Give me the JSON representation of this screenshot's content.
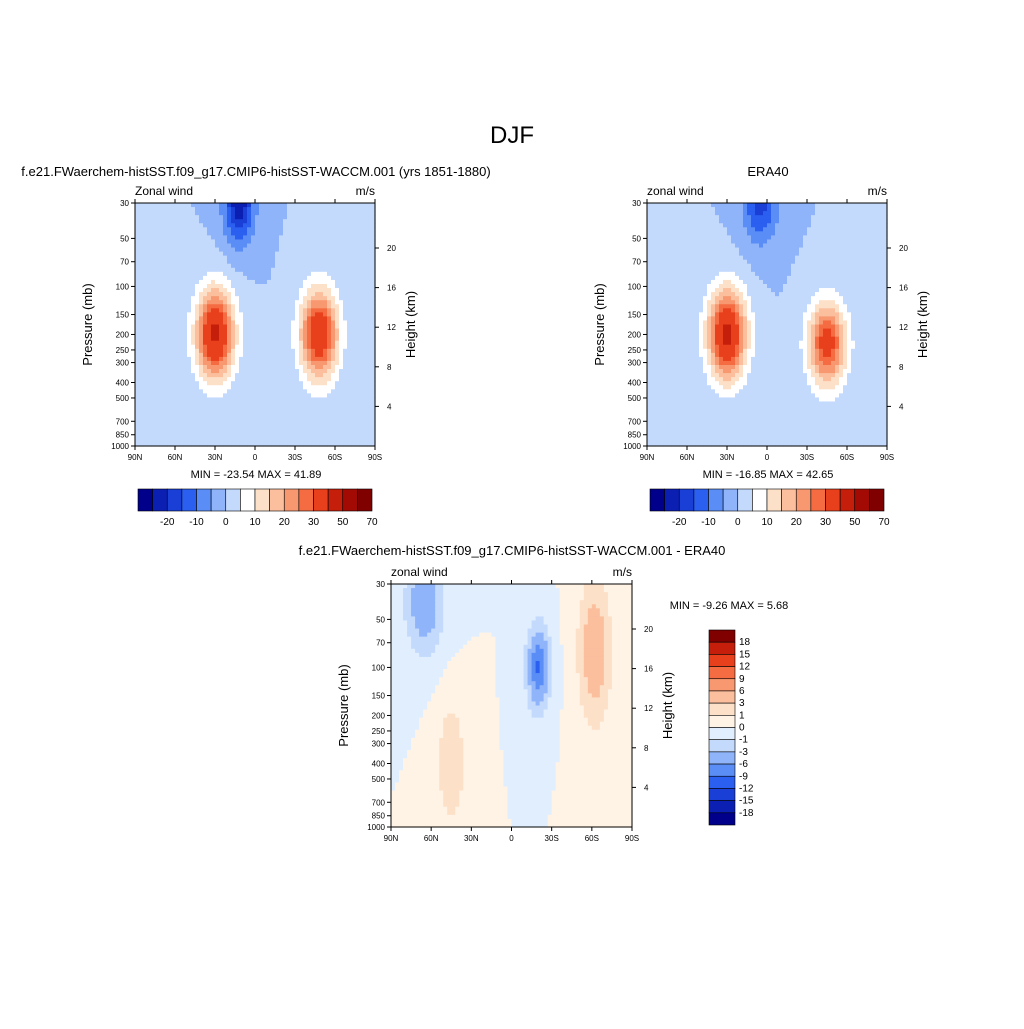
{
  "page_title": "DJF",
  "colors": {
    "main_scale": [
      "#00008b",
      "#0b1fb3",
      "#1a3fd6",
      "#2a5ff0",
      "#5a8ef6",
      "#8fb4fa",
      "#c4dafd",
      "#ffffff",
      "#fde0c8",
      "#fbbf9e",
      "#f89870",
      "#f56c42",
      "#e8401c",
      "#c51f0c",
      "#a30a04",
      "#800000"
    ],
    "diff_scale": [
      "#00008b",
      "#0b1fb3",
      "#1a3fd6",
      "#2a5ff0",
      "#5a8ef6",
      "#8fb4fa",
      "#c4dafd",
      "#e1eefe",
      "#fff3e6",
      "#fde0c8",
      "#fbbf9e",
      "#f89870",
      "#f56c42",
      "#e8401c",
      "#c51f0c",
      "#800000"
    ]
  },
  "panels": {
    "model": {
      "title": "f.e21.FWaerchem-histSST.f09_g17.CMIP6-histSST-WACCM.001 (yrs 1851-1880)",
      "left_label": "Zonal wind",
      "right_label": "m/s",
      "min_max": "MIN = -23.54  MAX =  41.89"
    },
    "obs": {
      "title": "ERA40",
      "left_label": "zonal wind",
      "right_label": "m/s",
      "min_max": "MIN = -16.85  MAX =  42.65"
    },
    "diff": {
      "title": "f.e21.FWaerchem-histSST.f09_g17.CMIP6-histSST-WACCM.001 - ERA40",
      "left_label": "zonal wind",
      "right_label": "m/s",
      "min_max": "MIN =  -9.26  MAX =   5.68"
    }
  },
  "chart_data": [
    {
      "type": "heatmap",
      "name": "model",
      "xlabel": "",
      "ylabel": "Pressure (mb)",
      "y2label": "Height (km)",
      "x_ticks": [
        "90N",
        "60N",
        "30N",
        "0",
        "30S",
        "60S",
        "90S"
      ],
      "x_tick_values": [
        90,
        60,
        30,
        0,
        -30,
        -60,
        -90
      ],
      "xlim": [
        90,
        -90
      ],
      "y_ticks": [
        30,
        50,
        70,
        100,
        150,
        200,
        250,
        300,
        400,
        500,
        700,
        850,
        1000
      ],
      "ylim": [
        1000,
        30
      ],
      "y_scale": "log",
      "y2_ticks": [
        4,
        8,
        12,
        16,
        20
      ],
      "min": -23.54,
      "max": 41.89,
      "jets": [
        {
          "lat": 30,
          "p": 200,
          "peak": 41.89,
          "lat_width": 10,
          "p_width": 0.45
        },
        {
          "lat": -48,
          "p": 200,
          "peak": 38,
          "lat_width": 10,
          "p_width": 0.45
        },
        {
          "lat": 12,
          "p": 30,
          "peak": -23.54,
          "lat_width": 8,
          "p_width": 0.4
        }
      ]
    },
    {
      "type": "heatmap",
      "name": "obs",
      "xlabel": "",
      "ylabel": "Pressure (mb)",
      "y2label": "Height (km)",
      "x_ticks": [
        "90N",
        "60N",
        "30N",
        "0",
        "30S",
        "60S",
        "90S"
      ],
      "x_tick_values": [
        90,
        60,
        30,
        0,
        -30,
        -60,
        -90
      ],
      "xlim": [
        90,
        -90
      ],
      "y_ticks": [
        30,
        50,
        70,
        100,
        150,
        200,
        250,
        300,
        400,
        500,
        700,
        850,
        1000
      ],
      "ylim": [
        1000,
        30
      ],
      "y_scale": "log",
      "y2_ticks": [
        4,
        8,
        12,
        16,
        20
      ],
      "min": -16.85,
      "max": 42.65,
      "jets": [
        {
          "lat": 30,
          "p": 200,
          "peak": 42.65,
          "lat_width": 10,
          "p_width": 0.45
        },
        {
          "lat": -45,
          "p": 230,
          "peak": 34,
          "lat_width": 10,
          "p_width": 0.42
        },
        {
          "lat": 5,
          "p": 30,
          "peak": -16.85,
          "lat_width": 9,
          "p_width": 0.4
        }
      ]
    },
    {
      "type": "heatmap",
      "name": "diff",
      "xlabel": "",
      "ylabel": "Pressure (mb)",
      "y2label": "Height (km)",
      "x_ticks": [
        "90N",
        "60N",
        "30N",
        "0",
        "30S",
        "60S",
        "90S"
      ],
      "x_tick_values": [
        90,
        60,
        30,
        0,
        -30,
        -60,
        -90
      ],
      "xlim": [
        90,
        -90
      ],
      "y_ticks": [
        30,
        50,
        70,
        100,
        150,
        200,
        250,
        300,
        400,
        500,
        700,
        850,
        1000
      ],
      "ylim": [
        1000,
        30
      ],
      "y_scale": "log",
      "y2_ticks": [
        4,
        8,
        12,
        16,
        20
      ],
      "min": -9.26,
      "max": 5.68,
      "jets": [
        {
          "lat": -20,
          "p": 100,
          "peak": -9.26,
          "lat_width": 5,
          "p_width": 0.35
        },
        {
          "lat": 65,
          "p": 40,
          "peak": -6,
          "lat_width": 8,
          "p_width": 0.4
        },
        {
          "lat": -62,
          "p": 80,
          "peak": 5.68,
          "lat_width": 7,
          "p_width": 0.6
        },
        {
          "lat": 45,
          "p": 400,
          "peak": 3,
          "lat_width": 6,
          "p_width": 0.5
        }
      ]
    }
  ],
  "colorbars": {
    "main": {
      "labels": [
        "-20",
        "-10",
        "0",
        "10",
        "20",
        "30",
        "50",
        "70"
      ]
    },
    "diff": {
      "labels": [
        "18",
        "15",
        "12",
        "9",
        "6",
        "3",
        "1",
        "0",
        "-1",
        "-3",
        "-6",
        "-9",
        "-12",
        "-15",
        "-18"
      ]
    }
  }
}
